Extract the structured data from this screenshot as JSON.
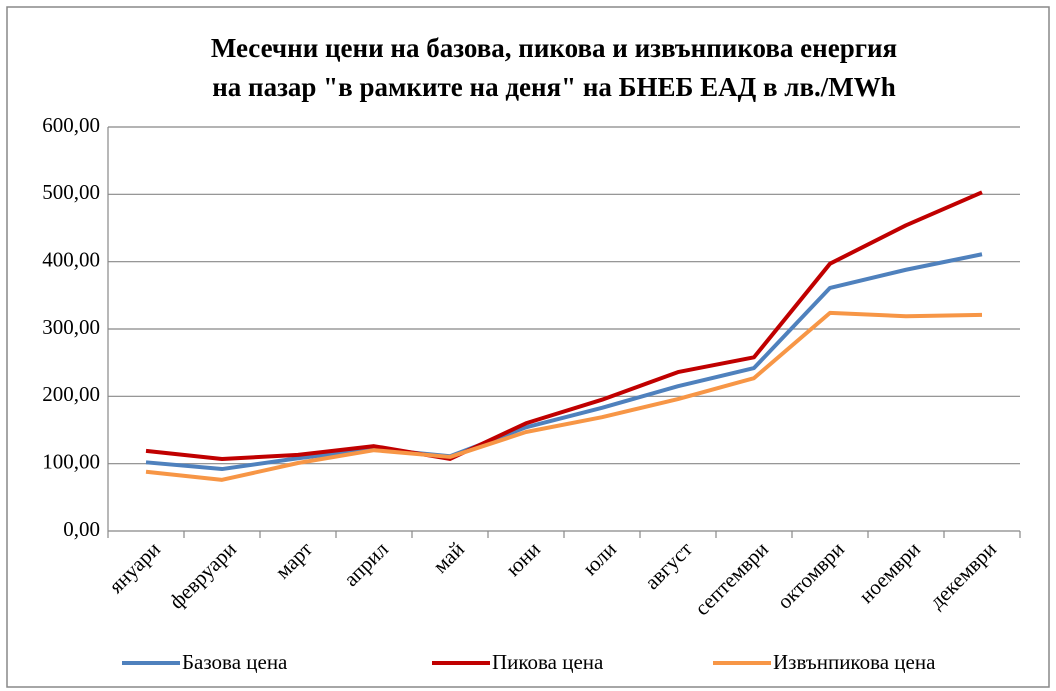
{
  "chart_data": {
    "type": "line",
    "title": [
      "Месечни цени на базова, пикова и извънпикова енергия",
      "на пазар \"в рамките на деня\" на БНЕБ ЕАД в лв./MWh"
    ],
    "categories": [
      "януари",
      "февруари",
      "март",
      "април",
      "май",
      "юни",
      "юли",
      "август",
      "септември",
      "октомври",
      "ноември",
      "декември"
    ],
    "series": [
      {
        "name": "Базова цена",
        "color": "#4f81bd",
        "values": [
          102,
          92,
          108,
          122,
          111,
          154,
          183,
          215,
          242,
          361,
          388,
          411
        ]
      },
      {
        "name": "Пикова цена",
        "color": "#c00000",
        "values": [
          119,
          107,
          113,
          126,
          107,
          160,
          195,
          236,
          258,
          397,
          454,
          503
        ]
      },
      {
        "name": "Извънпикова цена",
        "color": "#f79646",
        "values": [
          88,
          76,
          101,
          120,
          110,
          147,
          169,
          196,
          227,
          324,
          319,
          321
        ]
      }
    ],
    "ylim": [
      0,
      600
    ],
    "yticks": [
      {
        "value": 0,
        "label": "0,00"
      },
      {
        "value": 100,
        "label": "100,00"
      },
      {
        "value": 200,
        "label": "200,00"
      },
      {
        "value": 300,
        "label": "300,00"
      },
      {
        "value": 400,
        "label": "400,00"
      },
      {
        "value": 500,
        "label": "500,00"
      },
      {
        "value": 600,
        "label": "600,00"
      }
    ],
    "grid": true,
    "legend": "bottom"
  }
}
